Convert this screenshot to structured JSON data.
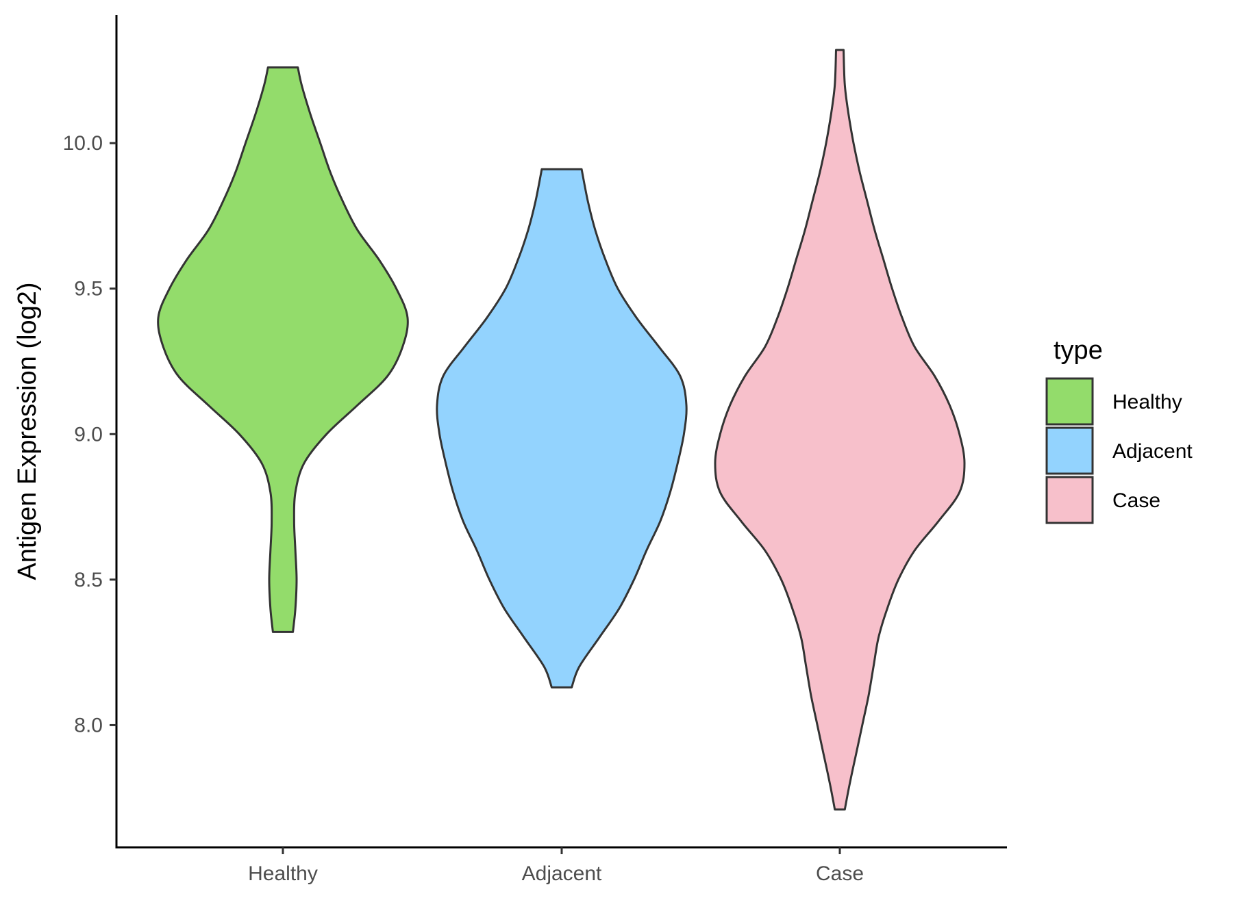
{
  "chart_data": {
    "type": "violin",
    "title": "",
    "xlabel": "",
    "ylabel": "Antigen Expression (log2)",
    "ylim": [
      7.58,
      10.44
    ],
    "y_ticks": [
      "8.0",
      "8.5",
      "9.0",
      "9.5",
      "10.0"
    ],
    "categories": [
      "Healthy",
      "Adjacent",
      "Case"
    ],
    "legend": {
      "title": "type",
      "position": "right",
      "entries": [
        {
          "label": "Healthy",
          "color": "#93dc6b"
        },
        {
          "label": "Adjacent",
          "color": "#93d3fe"
        },
        {
          "label": "Case",
          "color": "#f7c0cb"
        }
      ]
    },
    "outline_color": "#333333",
    "grid": false,
    "series": [
      {
        "name": "Healthy",
        "color": "#93dc6b",
        "min": 8.32,
        "max": 10.26,
        "density_profile": [
          [
            8.32,
            0.08
          ],
          [
            8.4,
            0.1
          ],
          [
            8.5,
            0.11
          ],
          [
            8.6,
            0.1
          ],
          [
            8.7,
            0.09
          ],
          [
            8.8,
            0.1
          ],
          [
            8.9,
            0.17
          ],
          [
            9.0,
            0.35
          ],
          [
            9.1,
            0.6
          ],
          [
            9.2,
            0.84
          ],
          [
            9.3,
            0.96
          ],
          [
            9.4,
            1.0
          ],
          [
            9.5,
            0.91
          ],
          [
            9.6,
            0.77
          ],
          [
            9.7,
            0.6
          ],
          [
            9.8,
            0.48
          ],
          [
            9.9,
            0.38
          ],
          [
            10.0,
            0.3
          ],
          [
            10.1,
            0.22
          ],
          [
            10.2,
            0.15
          ],
          [
            10.26,
            0.12
          ]
        ]
      },
      {
        "name": "Adjacent",
        "color": "#93d3fe",
        "min": 8.13,
        "max": 9.91,
        "density_profile": [
          [
            8.13,
            0.08
          ],
          [
            8.2,
            0.14
          ],
          [
            8.3,
            0.3
          ],
          [
            8.4,
            0.46
          ],
          [
            8.5,
            0.58
          ],
          [
            8.6,
            0.68
          ],
          [
            8.7,
            0.79
          ],
          [
            8.8,
            0.87
          ],
          [
            8.9,
            0.93
          ],
          [
            9.0,
            0.98
          ],
          [
            9.1,
            1.0
          ],
          [
            9.2,
            0.95
          ],
          [
            9.3,
            0.78
          ],
          [
            9.4,
            0.6
          ],
          [
            9.5,
            0.45
          ],
          [
            9.6,
            0.35
          ],
          [
            9.7,
            0.27
          ],
          [
            9.8,
            0.21
          ],
          [
            9.91,
            0.16
          ]
        ]
      },
      {
        "name": "Case",
        "color": "#f7c0cb",
        "min": 7.71,
        "max": 10.32,
        "density_profile": [
          [
            7.71,
            0.04
          ],
          [
            7.8,
            0.08
          ],
          [
            7.9,
            0.13
          ],
          [
            8.0,
            0.18
          ],
          [
            8.1,
            0.23
          ],
          [
            8.2,
            0.27
          ],
          [
            8.3,
            0.31
          ],
          [
            8.4,
            0.38
          ],
          [
            8.5,
            0.47
          ],
          [
            8.6,
            0.6
          ],
          [
            8.7,
            0.79
          ],
          [
            8.8,
            0.96
          ],
          [
            8.9,
            1.0
          ],
          [
            9.0,
            0.96
          ],
          [
            9.1,
            0.88
          ],
          [
            9.2,
            0.76
          ],
          [
            9.3,
            0.6
          ],
          [
            9.4,
            0.5
          ],
          [
            9.5,
            0.42
          ],
          [
            9.6,
            0.35
          ],
          [
            9.7,
            0.28
          ],
          [
            9.8,
            0.22
          ],
          [
            9.9,
            0.16
          ],
          [
            10.0,
            0.11
          ],
          [
            10.1,
            0.07
          ],
          [
            10.2,
            0.04
          ],
          [
            10.32,
            0.03
          ]
        ]
      }
    ]
  }
}
